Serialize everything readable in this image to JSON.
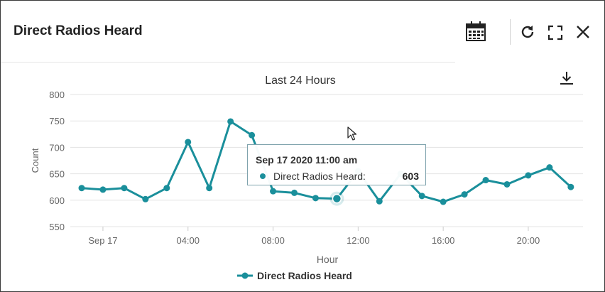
{
  "panel": {
    "title": "Direct Radios Heard",
    "icons": [
      "calendar-icon",
      "refresh-icon",
      "expand-icon",
      "close-icon",
      "download-icon",
      "cursor-arrow-icon"
    ]
  },
  "tooltip": {
    "time": "Sep 17 2020 11:00 am",
    "label": "Direct Radios Heard:",
    "value": "603"
  },
  "chart_data": {
    "type": "line",
    "title": "Last 24 Hours",
    "xlabel": "Hour",
    "ylabel": "Count",
    "ylim": [
      550,
      800
    ],
    "yticks": [
      550,
      600,
      650,
      700,
      750,
      800
    ],
    "xlim": [
      "Sep 16 23:00",
      "Sep 17 22:00"
    ],
    "xticks": [
      "Sep 17",
      "04:00",
      "08:00",
      "12:00",
      "16:00",
      "20:00"
    ],
    "grid": "horizontal",
    "legend": "bottom-center",
    "color": "#1a8f9b",
    "highlighted_point": "Sep 17 11:00",
    "series": [
      {
        "name": "Direct Radios Heard",
        "points": [
          {
            "x": "Sep 16 23:00",
            "y": 623
          },
          {
            "x": "Sep 17 00:00",
            "y": 620
          },
          {
            "x": "Sep 17 01:00",
            "y": 623
          },
          {
            "x": "Sep 17 02:00",
            "y": 602
          },
          {
            "x": "Sep 17 03:00",
            "y": 623
          },
          {
            "x": "Sep 17 04:00",
            "y": 710
          },
          {
            "x": "Sep 17 05:00",
            "y": 623
          },
          {
            "x": "Sep 17 06:00",
            "y": 749
          },
          {
            "x": "Sep 17 07:00",
            "y": 723
          },
          {
            "x": "Sep 17 08:00",
            "y": 617
          },
          {
            "x": "Sep 17 09:00",
            "y": 614
          },
          {
            "x": "Sep 17 10:00",
            "y": 604
          },
          {
            "x": "Sep 17 11:00",
            "y": 603
          },
          {
            "x": "Sep 17 12:00",
            "y": 655
          },
          {
            "x": "Sep 17 13:00",
            "y": 598
          },
          {
            "x": "Sep 17 14:00",
            "y": 650
          },
          {
            "x": "Sep 17 15:00",
            "y": 608
          },
          {
            "x": "Sep 17 16:00",
            "y": 597
          },
          {
            "x": "Sep 17 17:00",
            "y": 611
          },
          {
            "x": "Sep 17 18:00",
            "y": 638
          },
          {
            "x": "Sep 17 19:00",
            "y": 630
          },
          {
            "x": "Sep 17 20:00",
            "y": 647
          },
          {
            "x": "Sep 17 21:00",
            "y": 662
          },
          {
            "x": "Sep 17 22:00",
            "y": 625
          }
        ]
      }
    ]
  }
}
